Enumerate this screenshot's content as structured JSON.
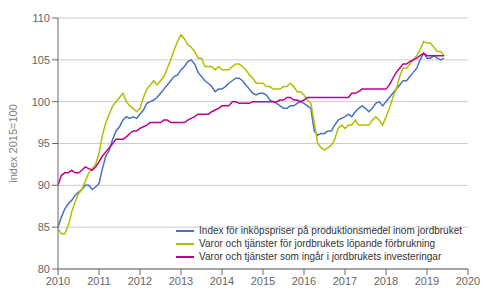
{
  "chart_data": {
    "type": "line",
    "ylabel": "index 2015=100",
    "xlim": [
      2010.0,
      2020.0
    ],
    "xticks": [
      2010,
      2011,
      2012,
      2013,
      2014,
      2015,
      2016,
      2017,
      2018,
      2019,
      2020
    ],
    "ylim": [
      80,
      110
    ],
    "yticks": [
      80,
      85,
      90,
      95,
      100,
      105,
      110
    ],
    "grid": true,
    "legend": "lower right",
    "x": [
      2010.0,
      2010.0833333333333,
      2010.1666666666667,
      2010.25,
      2010.3333333333333,
      2010.4166666666667,
      2010.5,
      2010.5833333333333,
      2010.6666666666667,
      2010.75,
      2010.8333333333333,
      2010.9166666666667,
      2011.0,
      2011.0833333333333,
      2011.1666666666667,
      2011.25,
      2011.3333333333333,
      2011.4166666666667,
      2011.5,
      2011.5833333333333,
      2011.6666666666667,
      2011.75,
      2011.8333333333333,
      2011.9166666666667,
      2012.0,
      2012.0833333333333,
      2012.1666666666667,
      2012.25,
      2012.3333333333333,
      2012.4166666666667,
      2012.5,
      2012.5833333333333,
      2012.6666666666667,
      2012.75,
      2012.8333333333333,
      2012.9166666666667,
      2013.0,
      2013.0833333333333,
      2013.1666666666667,
      2013.25,
      2013.3333333333333,
      2013.4166666666667,
      2013.5,
      2013.5833333333333,
      2013.6666666666667,
      2013.75,
      2013.8333333333333,
      2013.9166666666667,
      2014.0,
      2014.0833333333333,
      2014.1666666666667,
      2014.25,
      2014.3333333333333,
      2014.4166666666667,
      2014.5,
      2014.5833333333333,
      2014.6666666666667,
      2014.75,
      2014.8333333333333,
      2014.9166666666667,
      2015.0,
      2015.0833333333333,
      2015.1666666666667,
      2015.25,
      2015.3333333333333,
      2015.4166666666667,
      2015.5,
      2015.5833333333333,
      2015.6666666666667,
      2015.75,
      2015.8333333333333,
      2015.9166666666667,
      2016.0,
      2016.0833333333333,
      2016.1666666666667,
      2016.25,
      2016.3333333333333,
      2016.4166666666667,
      2016.5,
      2016.5833333333333,
      2016.6666666666667,
      2016.75,
      2016.8333333333333,
      2016.9166666666667,
      2017.0,
      2017.0833333333333,
      2017.1666666666667,
      2017.25,
      2017.3333333333333,
      2017.4166666666667,
      2017.5,
      2017.5833333333333,
      2017.6666666666667,
      2017.75,
      2017.8333333333333,
      2017.9166666666667,
      2018.0,
      2018.0833333333333,
      2018.1666666666667,
      2018.25,
      2018.3333333333333,
      2018.4166666666667,
      2018.5,
      2018.5833333333333,
      2018.6666666666667,
      2018.75,
      2018.8333333333333,
      2018.9166666666667,
      2019.0,
      2019.0833333333333,
      2019.1666666666667,
      2019.25,
      2019.3333333333333,
      2019.4166666666667
    ],
    "series": [
      {
        "name": "Index för inköpspriser på produktionsmedel inom jordbruket",
        "color": "#4472C4",
        "values": [
          85.0,
          86.2,
          87.2,
          87.8,
          88.2,
          88.8,
          89.2,
          89.5,
          90.0,
          90.0,
          89.5,
          89.8,
          90.2,
          92.0,
          93.5,
          94.2,
          95.5,
          96.5,
          97.0,
          97.8,
          98.2,
          98.0,
          98.2,
          98.0,
          98.5,
          99.0,
          99.8,
          100.0,
          100.2,
          100.5,
          101.0,
          101.5,
          102.0,
          102.5,
          103.0,
          103.2,
          103.8,
          104.2,
          104.8,
          105.0,
          104.5,
          103.5,
          103.0,
          102.5,
          102.2,
          101.8,
          101.2,
          101.5,
          101.5,
          101.8,
          102.2,
          102.5,
          102.8,
          102.8,
          102.5,
          102.0,
          101.5,
          101.0,
          100.8,
          101.0,
          101.0,
          100.8,
          100.2,
          100.0,
          99.8,
          99.5,
          99.2,
          99.2,
          99.5,
          99.5,
          99.8,
          100.0,
          99.8,
          99.5,
          99.2,
          96.5,
          96.0,
          96.2,
          96.2,
          96.5,
          96.5,
          97.2,
          97.8,
          98.0,
          98.2,
          98.5,
          98.2,
          98.8,
          99.2,
          99.5,
          99.2,
          98.8,
          99.2,
          99.8,
          100.0,
          99.5,
          100.0,
          100.5,
          101.0,
          101.5,
          102.0,
          102.5,
          102.5,
          103.0,
          103.5,
          104.0,
          105.0,
          105.8,
          105.2,
          105.2,
          105.5,
          105.2,
          105.0,
          105.2
        ]
      },
      {
        "name": "Varor och tjänster för jordbrukets löpande förbrukning",
        "color": "#b5bd00",
        "values": [
          84.8,
          84.2,
          84.2,
          85.2,
          86.8,
          88.0,
          89.0,
          89.5,
          90.5,
          91.5,
          92.0,
          92.5,
          93.8,
          96.0,
          97.5,
          98.5,
          99.5,
          100.0,
          100.5,
          101.0,
          100.0,
          99.5,
          99.2,
          98.8,
          99.2,
          100.5,
          101.5,
          102.0,
          102.5,
          102.0,
          102.5,
          103.0,
          104.0,
          105.0,
          106.2,
          107.2,
          108.0,
          107.5,
          106.8,
          106.5,
          106.0,
          105.2,
          105.2,
          104.2,
          104.2,
          104.2,
          103.8,
          104.2,
          103.8,
          103.8,
          103.8,
          104.2,
          104.5,
          104.5,
          104.2,
          103.8,
          103.2,
          102.8,
          102.2,
          102.2,
          102.2,
          101.8,
          101.8,
          101.5,
          101.5,
          101.5,
          101.8,
          101.8,
          102.2,
          101.8,
          101.2,
          101.2,
          100.8,
          100.2,
          99.8,
          97.5,
          95.0,
          94.5,
          94.2,
          94.5,
          94.8,
          95.5,
          96.8,
          97.2,
          96.8,
          97.2,
          97.2,
          97.8,
          97.2,
          97.2,
          97.2,
          97.2,
          97.8,
          98.2,
          97.8,
          97.2,
          98.2,
          99.2,
          100.5,
          101.5,
          103.0,
          104.0,
          104.0,
          104.5,
          105.0,
          105.5,
          106.2,
          107.2,
          107.0,
          107.0,
          106.5,
          106.0,
          106.0,
          105.5
        ]
      },
      {
        "name": "Varor och tjänster som ingår i jordbrukets investeringar",
        "color": "#C00090",
        "values": [
          90.0,
          91.2,
          91.5,
          91.5,
          91.8,
          91.5,
          91.5,
          91.8,
          92.2,
          92.0,
          91.8,
          92.2,
          92.8,
          93.5,
          94.0,
          94.5,
          95.0,
          95.5,
          95.5,
          95.5,
          95.8,
          96.2,
          96.5,
          96.5,
          96.8,
          97.0,
          97.2,
          97.5,
          97.5,
          97.5,
          97.5,
          97.8,
          97.8,
          97.5,
          97.5,
          97.5,
          97.5,
          97.5,
          97.8,
          98.0,
          98.2,
          98.5,
          98.5,
          98.5,
          98.5,
          98.8,
          99.0,
          99.2,
          99.5,
          99.5,
          99.5,
          100.0,
          100.0,
          99.8,
          99.8,
          99.8,
          99.8,
          100.0,
          100.0,
          100.0,
          100.0,
          100.0,
          100.0,
          100.0,
          100.0,
          100.2,
          100.2,
          100.5,
          100.5,
          100.2,
          100.2,
          100.0,
          100.2,
          100.5,
          100.5,
          100.5,
          100.5,
          100.5,
          100.5,
          100.5,
          100.5,
          100.5,
          100.5,
          100.5,
          100.5,
          100.5,
          101.0,
          101.0,
          101.2,
          101.5,
          101.5,
          101.5,
          101.5,
          101.5,
          101.5,
          101.5,
          101.5,
          102.0,
          102.8,
          103.5,
          104.0,
          104.5,
          104.5,
          104.8,
          105.0,
          105.2,
          105.5,
          105.8,
          105.5,
          105.5,
          105.5,
          105.5,
          105.5,
          105.5
        ]
      }
    ]
  }
}
